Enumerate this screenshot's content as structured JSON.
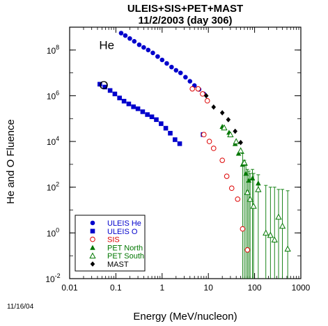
{
  "date_stamp": "11/16/04",
  "chart_data": {
    "type": "scatter",
    "title": "ULEIS+SIS+PET+MAST",
    "subtitle": "11/2/2003 (day 306)",
    "xlabel": "Energy (MeV/nucleon)",
    "ylabel": "He and O Fluence",
    "xscale": "log",
    "yscale": "log",
    "xlim": [
      0.01,
      1000
    ],
    "ylim": [
      0.01,
      1000000000
    ],
    "x_ticks": [
      0.01,
      0.1,
      1,
      10,
      100,
      1000
    ],
    "x_tick_labels": [
      "0.01",
      "0.1",
      "1",
      "10",
      "100",
      "1000"
    ],
    "y_ticks": [
      0.01,
      1,
      100,
      10000,
      1000000,
      100000000
    ],
    "y_tick_labels": [
      {
        "base": "10",
        "exp": "-2"
      },
      {
        "base": "10",
        "exp": "0"
      },
      {
        "base": "10",
        "exp": "2"
      },
      {
        "base": "10",
        "exp": "4"
      },
      {
        "base": "10",
        "exp": "6"
      },
      {
        "base": "10",
        "exp": "8"
      }
    ],
    "annotations": [
      {
        "text": "He",
        "x": 0.05,
        "y": 170000000
      },
      {
        "text": "O",
        "x": 0.05,
        "y": 3000000
      }
    ],
    "legend_position": "bottom-left",
    "series": [
      {
        "name": "ULEIS He",
        "marker": "circle-filled",
        "color": "#0000cc",
        "label_color": "#0000cc",
        "points": [
          [
            0.13,
            550000000
          ],
          [
            0.16,
            430000000
          ],
          [
            0.2,
            320000000
          ],
          [
            0.25,
            240000000
          ],
          [
            0.32,
            170000000
          ],
          [
            0.4,
            130000000
          ],
          [
            0.5,
            100000000
          ],
          [
            0.63,
            75000000
          ],
          [
            0.8,
            52000000
          ],
          [
            1.0,
            37000000
          ],
          [
            1.26,
            26000000
          ],
          [
            1.6,
            18000000
          ],
          [
            2.0,
            13000000
          ],
          [
            2.5,
            10000000
          ],
          [
            3.2,
            6500000
          ],
          [
            4.0,
            4300000
          ],
          [
            5.0,
            2800000
          ],
          [
            6.3,
            1900000
          ],
          [
            8.0,
            1200000
          ]
        ]
      },
      {
        "name": "ULEIS O",
        "marker": "square-filled",
        "color": "#0000cc",
        "label_color": "#0000cc",
        "points": [
          [
            0.045,
            3200000
          ],
          [
            0.058,
            2400000
          ],
          [
            0.075,
            1700000
          ],
          [
            0.095,
            1200000
          ],
          [
            0.12,
            800000
          ],
          [
            0.15,
            580000
          ],
          [
            0.19,
            440000
          ],
          [
            0.24,
            330000
          ],
          [
            0.3,
            270000
          ],
          [
            0.38,
            200000
          ],
          [
            0.48,
            150000
          ],
          [
            0.6,
            120000
          ],
          [
            0.75,
            90000
          ],
          [
            0.95,
            60000
          ],
          [
            1.2,
            38000
          ],
          [
            1.5,
            23000
          ],
          [
            1.9,
            12000
          ],
          [
            2.4,
            8000
          ],
          [
            7.7,
            20000
          ]
        ]
      },
      {
        "name": "SIS",
        "marker": "circle-open",
        "color": "#dd0000",
        "label_color": "#dd0000",
        "points": [
          [
            4.5,
            2000000
          ],
          [
            6.0,
            2000000
          ],
          [
            7.5,
            1200000
          ],
          [
            9.5,
            600000
          ],
          [
            8.0,
            20000
          ],
          [
            10.5,
            10000
          ],
          [
            13.0,
            5000
          ],
          [
            20.0,
            1500
          ],
          [
            25.0,
            300
          ],
          [
            32.0,
            90
          ],
          [
            43.0,
            30
          ],
          [
            55.0,
            1.5
          ],
          [
            70.0,
            0.18
          ]
        ]
      },
      {
        "name": "PET North",
        "marker": "triangle-filled",
        "color": "#007700",
        "label_color": "#007700",
        "points": [
          [
            20.0,
            45000
          ],
          [
            28.0,
            25000
          ],
          [
            38.0,
            8000
          ],
          [
            45.0,
            3000
          ],
          [
            55.0,
            1000
          ],
          [
            65.0,
            400
          ],
          [
            75.0,
            200
          ],
          [
            90.0,
            250
          ],
          [
            120.0,
            150
          ]
        ]
      },
      {
        "name": "PET South",
        "marker": "triangle-open",
        "color": "#007700",
        "label_color": "#007700",
        "points": [
          [
            22.0,
            40000
          ],
          [
            30.0,
            20000
          ],
          [
            40.0,
            10000
          ],
          [
            50.0,
            4000
          ],
          [
            60.0,
            1200
          ],
          [
            70.0,
            60
          ],
          [
            80.0,
            30
          ],
          [
            95.0,
            15
          ],
          [
            120.0,
            80
          ],
          [
            175.0,
            1.0
          ],
          [
            220.0,
            0.8
          ],
          [
            270.0,
            0.5
          ],
          [
            330.0,
            5
          ],
          [
            400.0,
            2
          ],
          [
            520.0,
            0.2
          ]
        ]
      },
      {
        "name": "MAST",
        "marker": "diamond-filled",
        "color": "#000000",
        "label_color": "#000000",
        "points": [
          [
            9.0,
            1000000
          ],
          [
            13.0,
            320000
          ],
          [
            20.0,
            180000
          ],
          [
            27.0,
            90000
          ],
          [
            38.0,
            28000
          ],
          [
            50.0,
            9000
          ]
        ]
      }
    ],
    "error_bars": [
      {
        "x": 55.0,
        "low": 0.01,
        "high": 3000
      },
      {
        "x": 60.0,
        "low": 0.01,
        "high": 1500
      },
      {
        "x": 65.0,
        "low": 0.01,
        "high": 900
      },
      {
        "x": 70.0,
        "low": 0.01,
        "high": 600
      },
      {
        "x": 75.0,
        "low": 0.01,
        "high": 500
      },
      {
        "x": 80.0,
        "low": 0.01,
        "high": 400
      },
      {
        "x": 90.0,
        "low": 0.01,
        "high": 600
      },
      {
        "x": 95.0,
        "low": 0.01,
        "high": 400
      },
      {
        "x": 120.0,
        "low": 0.01,
        "high": 350
      },
      {
        "x": 175.0,
        "low": 0.01,
        "high": 120
      },
      {
        "x": 220.0,
        "low": 0.01,
        "high": 100
      },
      {
        "x": 270.0,
        "low": 0.01,
        "high": 100
      },
      {
        "x": 330.0,
        "low": 0.01,
        "high": 80
      },
      {
        "x": 400.0,
        "low": 0.01,
        "high": 80
      },
      {
        "x": 520.0,
        "low": 0.01,
        "high": 70
      }
    ]
  }
}
